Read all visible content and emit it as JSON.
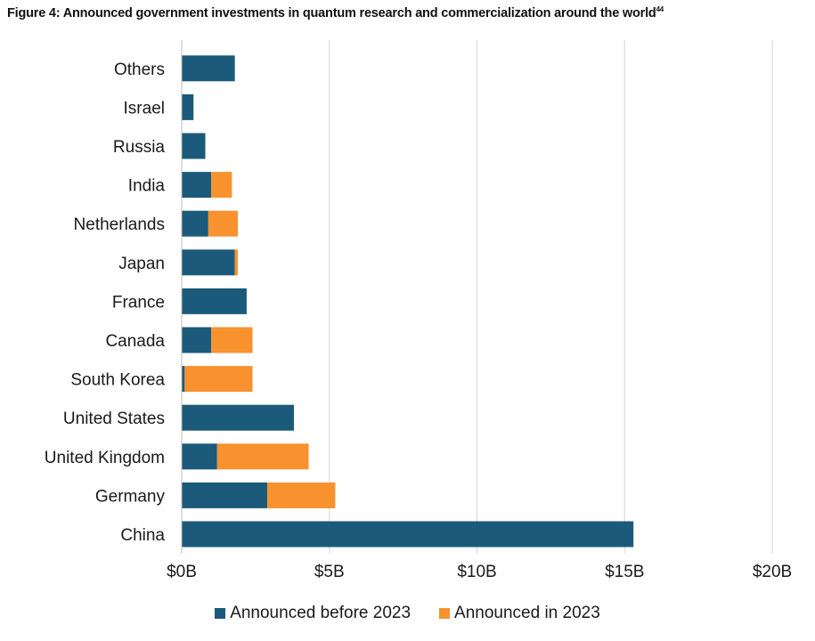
{
  "title": "Figure 4: Announced government investments in quantum research and commercialization around the world",
  "title_footnote": "44",
  "chart_data": {
    "type": "bar",
    "orientation": "horizontal",
    "stacked": true,
    "title": "Figure 4: Announced government investments in quantum research and commercialization around the world",
    "xlabel": "",
    "ylabel": "",
    "xlim": [
      0,
      20
    ],
    "units": "billion USD",
    "grid": true,
    "legend_position": "bottom",
    "x_ticks": [
      0,
      5,
      10,
      15,
      20
    ],
    "x_tick_labels": [
      "$0B",
      "$5B",
      "$10B",
      "$15B",
      "$20B"
    ],
    "categories": [
      "Others",
      "Israel",
      "Russia",
      "India",
      "Netherlands",
      "Japan",
      "France",
      "Canada",
      "South Korea",
      "United States",
      "United Kingdom",
      "Germany",
      "China"
    ],
    "series": [
      {
        "name": "Announced before 2023",
        "color": "#1b5a7a",
        "values": [
          1.8,
          0.4,
          0.8,
          1.0,
          0.9,
          1.8,
          2.2,
          1.0,
          0.1,
          3.8,
          1.2,
          2.9,
          15.3
        ]
      },
      {
        "name": "Announced in 2023",
        "color": "#f7922e",
        "values": [
          0,
          0,
          0,
          0.7,
          1.0,
          0.1,
          0,
          1.4,
          2.3,
          0,
          3.1,
          2.3,
          0
        ]
      }
    ]
  }
}
